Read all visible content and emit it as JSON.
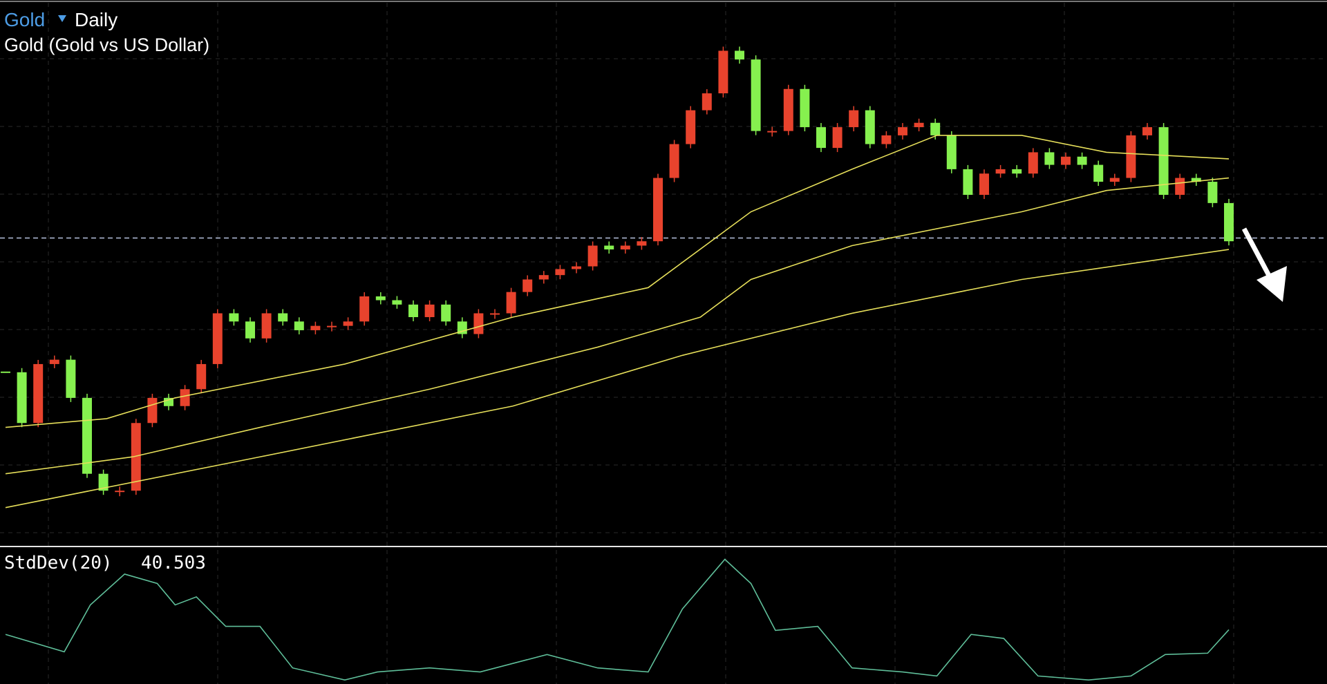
{
  "chart_data": {
    "type": "candlestick",
    "symbol": "Gold",
    "timeframe": "Daily",
    "title": "Gold (Gold vs US Dollar)",
    "xlim": [
      0,
      75
    ],
    "ylim": [
      0,
      100
    ],
    "up_color": "#e8432d",
    "down_color": "#86f04f",
    "closes": [
      31.8,
      22.5,
      33.3,
      34.1,
      27.1,
      13.2,
      10.1,
      10.1,
      22.5,
      27.1,
      25.6,
      28.7,
      33.3,
      42.6,
      41.1,
      38.0,
      42.6,
      41.1,
      39.5,
      40.3,
      40.3,
      41.1,
      45.7,
      45.0,
      44.2,
      41.9,
      44.2,
      41.1,
      38.8,
      42.6,
      42.6,
      46.5,
      48.8,
      49.6,
      50.7,
      51.2,
      55.0,
      54.3,
      55.0,
      55.8,
      67.4,
      73.6,
      79.8,
      82.9,
      90.7,
      89.1,
      76.0,
      76.0,
      83.7,
      76.7,
      72.9,
      76.7,
      79.8,
      73.6,
      75.2,
      76.7,
      77.5,
      75.2,
      69.0,
      64.3,
      68.2,
      69.0,
      68.2,
      72.1,
      69.8,
      71.3,
      69.8,
      66.7,
      67.4,
      75.2,
      76.7,
      64.3,
      67.4,
      66.7,
      62.8,
      55.8
    ],
    "moving_averages": [
      {
        "color": "#e6df5a",
        "x": [
          0,
          15.6,
          31.1,
          41.5,
          51.9,
          62.3,
          75
        ],
        "values": [
          7.0,
          16.3,
          25.6,
          34.9,
          42.6,
          48.8,
          54.3
        ]
      },
      {
        "color": "#e6df5a",
        "x": [
          0,
          7.8,
          15.6,
          26,
          36.3,
          42.6,
          45.7,
          51.9,
          62.3,
          67.5,
          75
        ],
        "values": [
          13.2,
          16.3,
          21.7,
          28.7,
          36.4,
          41.9,
          48.8,
          55.0,
          61.2,
          65.1,
          67.4
        ]
      },
      {
        "color": "#e6df5a",
        "x": [
          0,
          6.2,
          10.4,
          20.8,
          31.1,
          39.4,
          45.7,
          51.9,
          57.1,
          62.3,
          67.5,
          75
        ],
        "values": [
          21.7,
          23.3,
          27.1,
          33.3,
          41.9,
          47.3,
          61.2,
          69.0,
          75.2,
          75.2,
          72.1,
          70.9
        ]
      }
    ],
    "last_price": 56.4,
    "indicator": {
      "name": "StdDev(20)",
      "value": 40.503,
      "color": "#5fbf9a",
      "ylim": [
        0,
        100
      ],
      "x": [
        0,
        3.6,
        5.2,
        7.3,
        9.3,
        10.4,
        11.7,
        13.5,
        15.6,
        17.6,
        20.8,
        22.8,
        26,
        29.1,
        33.2,
        36.3,
        39.4,
        41.5,
        44.1,
        45.7,
        47.2,
        49.8,
        51.9,
        55,
        57.1,
        59.2,
        61.2,
        63.3,
        66.4,
        69,
        71.1,
        73.7,
        75
      ],
      "values": [
        37,
        24,
        59,
        82,
        75,
        59,
        65,
        43,
        43,
        12,
        3,
        9,
        12,
        9,
        22,
        12,
        9,
        56,
        93,
        75,
        40,
        43,
        12,
        9,
        6,
        37,
        34,
        6,
        3,
        6,
        22,
        23,
        40.503
      ]
    }
  }
}
